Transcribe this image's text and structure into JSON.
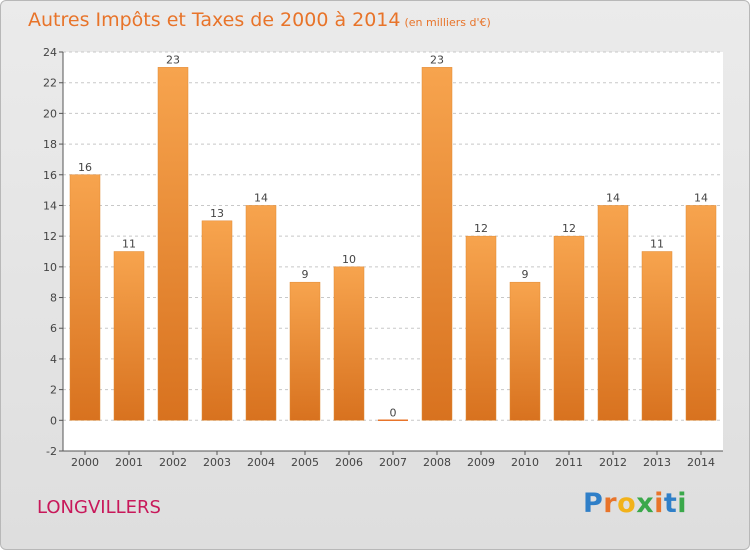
{
  "title": "Autres Impôts et Taxes de 2000 à 2014",
  "unit": "(en milliers d'€)",
  "city": "LONGVILLERS",
  "logo": {
    "letters": [
      {
        "ch": "P",
        "color": "#2f7fc8"
      },
      {
        "ch": "r",
        "color": "#e8742a"
      },
      {
        "ch": "o",
        "color": "#f2b21a"
      },
      {
        "ch": "x",
        "color": "#3aa84a"
      },
      {
        "ch": "i",
        "color": "#e8742a"
      },
      {
        "ch": "t",
        "color": "#2f7fc8"
      },
      {
        "ch": "i",
        "color": "#3aa84a"
      }
    ]
  },
  "chart_data": {
    "type": "bar",
    "categories": [
      "2000",
      "2001",
      "2002",
      "2003",
      "2004",
      "2005",
      "2006",
      "2007",
      "2008",
      "2009",
      "2010",
      "2011",
      "2012",
      "2013",
      "2014"
    ],
    "values": [
      16,
      11,
      23,
      13,
      14,
      9,
      10,
      0,
      23,
      12,
      9,
      12,
      14,
      11,
      14
    ],
    "data_labels": [
      "16",
      "11",
      "23",
      "13",
      "14",
      "9",
      "10",
      "0",
      "23",
      "12",
      "9",
      "12",
      "14",
      "11",
      "14"
    ],
    "title": "Autres Impôts et Taxes de 2000 à 2014",
    "xlabel": "",
    "ylabel": "",
    "ylim": [
      -2,
      24
    ],
    "yticks": [
      -2,
      0,
      2,
      4,
      6,
      8,
      10,
      12,
      14,
      16,
      18,
      20,
      22,
      24
    ],
    "grid": "horizontal dashed",
    "bar_color": "#f0922e"
  }
}
